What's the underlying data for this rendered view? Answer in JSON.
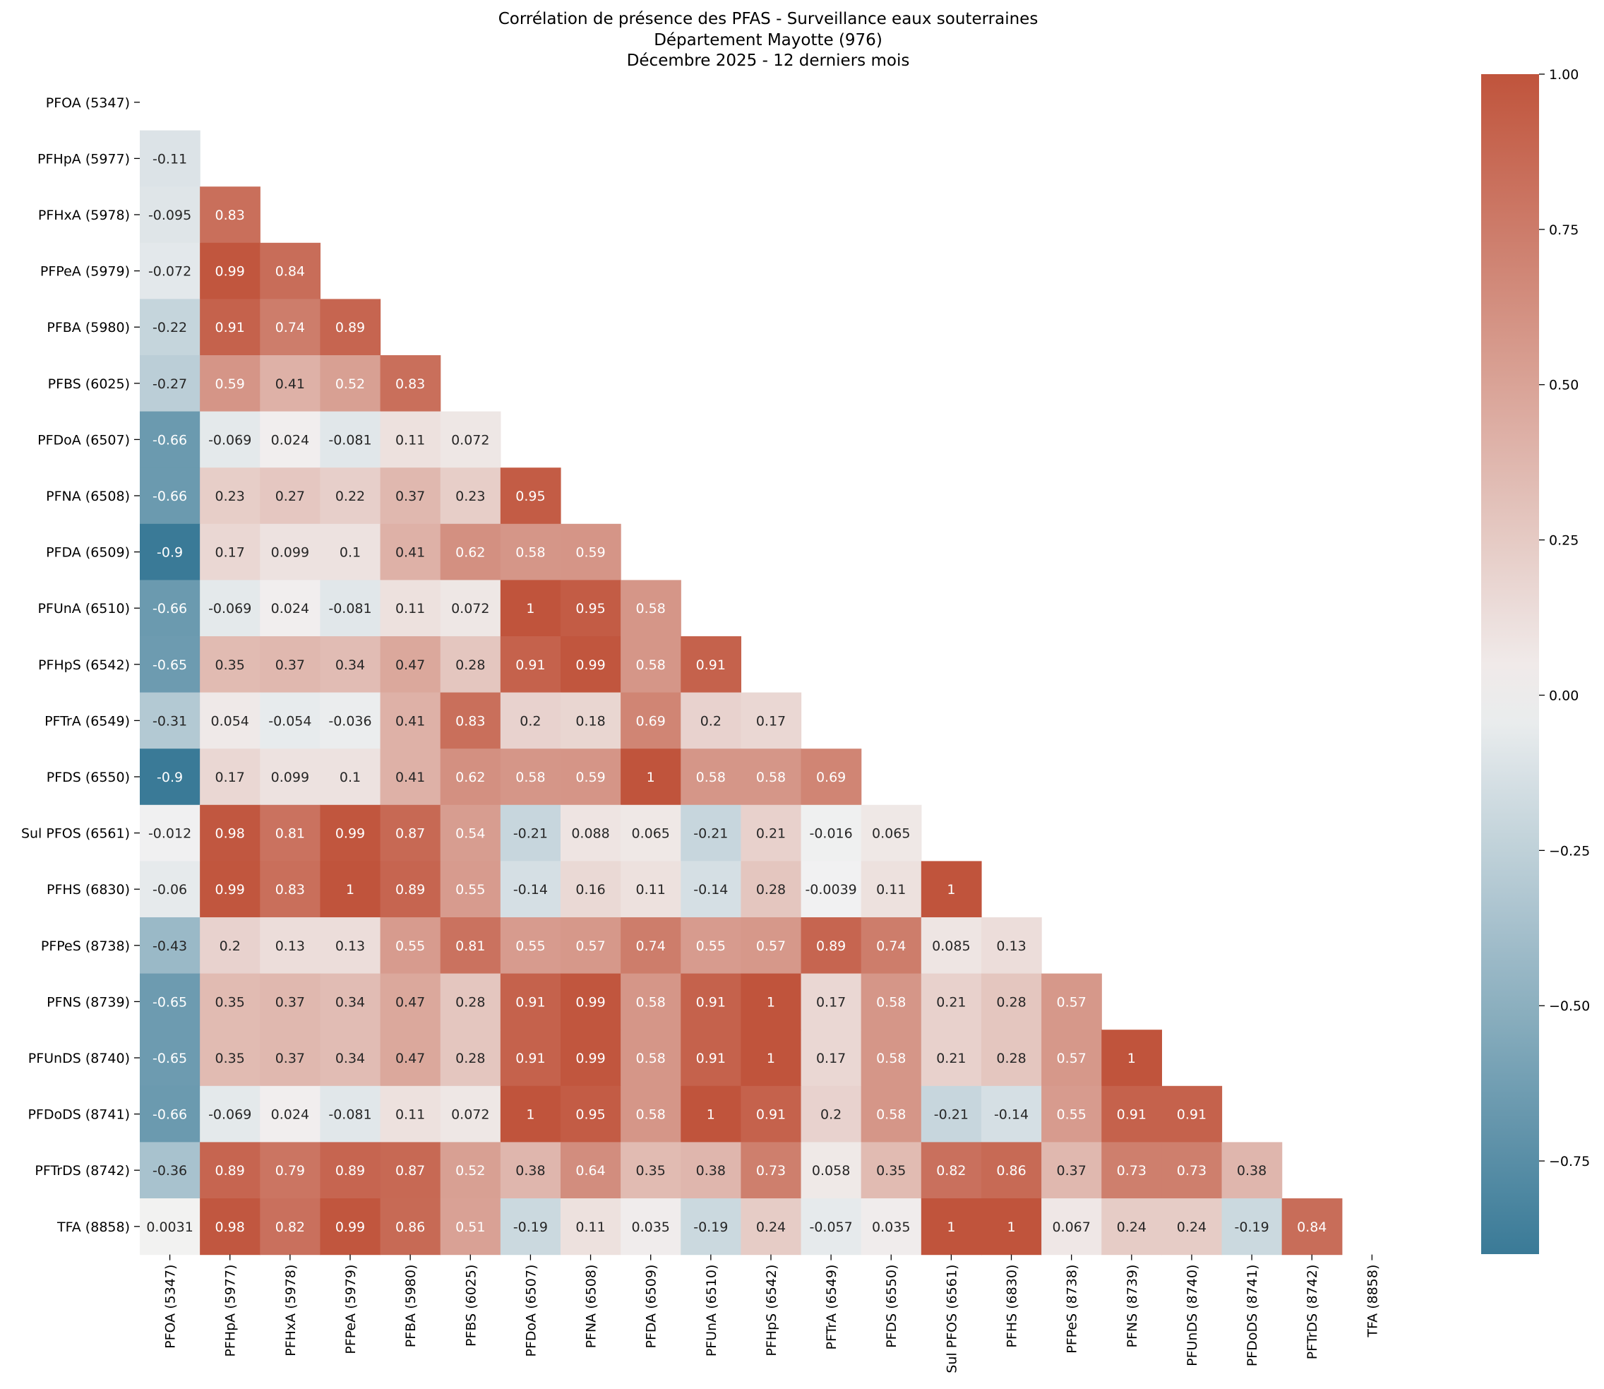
{
  "chart_data": {
    "type": "heatmap",
    "title": "Corrélation de présence des PFAS - Surveillance eaux souterraines",
    "subtitle_lines": [
      "Département Mayotte (976)",
      "Décembre 2025 - 12 derniers mois"
    ],
    "mask": "lower-triangle (diagonal and upper masked)",
    "labels": [
      "PFOA (5347)",
      "PFHpA (5977)",
      "PFHxA (5978)",
      "PFPeA (5979)",
      "PFBA (5980)",
      "PFBS (6025)",
      "PFDoA (6507)",
      "PFNA (6508)",
      "PFDA (6509)",
      "PFUnA (6510)",
      "PFHpS (6542)",
      "PFTrA (6549)",
      "PFDS (6550)",
      "Sul PFOS (6561)",
      "PFHS (6830)",
      "PFPeS (8738)",
      "PFNS (8739)",
      "PFUnDS (8740)",
      "PFDoDS (8741)",
      "PFTrDS (8742)",
      "TFA (8858)"
    ],
    "rows": [
      [],
      [
        "-0.11"
      ],
      [
        "-0.095",
        "0.83"
      ],
      [
        "-0.072",
        "0.99",
        "0.84"
      ],
      [
        "-0.22",
        "0.91",
        "0.74",
        "0.89"
      ],
      [
        "-0.27",
        "0.59",
        "0.41",
        "0.52",
        "0.83"
      ],
      [
        "-0.66",
        "-0.069",
        "0.024",
        "-0.081",
        "0.11",
        "0.072"
      ],
      [
        "-0.66",
        "0.23",
        "0.27",
        "0.22",
        "0.37",
        "0.23",
        "0.95"
      ],
      [
        "-0.9",
        "0.17",
        "0.099",
        "0.1",
        "0.41",
        "0.62",
        "0.58",
        "0.59"
      ],
      [
        "-0.66",
        "-0.069",
        "0.024",
        "-0.081",
        "0.11",
        "0.072",
        "1",
        "0.95",
        "0.58"
      ],
      [
        "-0.65",
        "0.35",
        "0.37",
        "0.34",
        "0.47",
        "0.28",
        "0.91",
        "0.99",
        "0.58",
        "0.91"
      ],
      [
        "-0.31",
        "0.054",
        "-0.054",
        "-0.036",
        "0.41",
        "0.83",
        "0.2",
        "0.18",
        "0.69",
        "0.2",
        "0.17"
      ],
      [
        "-0.9",
        "0.17",
        "0.099",
        "0.1",
        "0.41",
        "0.62",
        "0.58",
        "0.59",
        "1",
        "0.58",
        "0.58",
        "0.69"
      ],
      [
        "-0.012",
        "0.98",
        "0.81",
        "0.99",
        "0.87",
        "0.54",
        "-0.21",
        "0.088",
        "0.065",
        "-0.21",
        "0.21",
        "-0.016",
        "0.065"
      ],
      [
        "-0.06",
        "0.99",
        "0.83",
        "1",
        "0.89",
        "0.55",
        "-0.14",
        "0.16",
        "0.11",
        "-0.14",
        "0.28",
        "-0.0039",
        "0.11",
        "1"
      ],
      [
        "-0.43",
        "0.2",
        "0.13",
        "0.13",
        "0.55",
        "0.81",
        "0.55",
        "0.57",
        "0.74",
        "0.55",
        "0.57",
        "0.89",
        "0.74",
        "0.085",
        "0.13"
      ],
      [
        "-0.65",
        "0.35",
        "0.37",
        "0.34",
        "0.47",
        "0.28",
        "0.91",
        "0.99",
        "0.58",
        "0.91",
        "1",
        "0.17",
        "0.58",
        "0.21",
        "0.28",
        "0.57"
      ],
      [
        "-0.65",
        "0.35",
        "0.37",
        "0.34",
        "0.47",
        "0.28",
        "0.91",
        "0.99",
        "0.58",
        "0.91",
        "1",
        "0.17",
        "0.58",
        "0.21",
        "0.28",
        "0.57",
        "1"
      ],
      [
        "-0.66",
        "-0.069",
        "0.024",
        "-0.081",
        "0.11",
        "0.072",
        "1",
        "0.95",
        "0.58",
        "1",
        "0.91",
        "0.2",
        "0.58",
        "-0.21",
        "-0.14",
        "0.55",
        "0.91",
        "0.91"
      ],
      [
        "-0.36",
        "0.89",
        "0.79",
        "0.89",
        "0.87",
        "0.52",
        "0.38",
        "0.64",
        "0.35",
        "0.38",
        "0.73",
        "0.058",
        "0.35",
        "0.82",
        "0.86",
        "0.37",
        "0.73",
        "0.73",
        "0.38"
      ],
      [
        "0.0031",
        "0.98",
        "0.82",
        "0.99",
        "0.86",
        "0.51",
        "-0.19",
        "0.11",
        "0.035",
        "-0.19",
        "0.24",
        "-0.057",
        "0.035",
        "1",
        "1",
        "0.067",
        "0.24",
        "0.24",
        "-0.19",
        "0.84"
      ]
    ],
    "colorbar": {
      "vmin": -0.9,
      "vmax": 1.0,
      "ticks": [
        "1.00",
        "0.75",
        "0.50",
        "0.25",
        "0.00",
        "−0.25",
        "−0.50",
        "−0.75"
      ],
      "cmap_low": "#3a7a97",
      "cmap_mid": "#f2f2f2",
      "cmap_high": "#c0543c"
    }
  }
}
